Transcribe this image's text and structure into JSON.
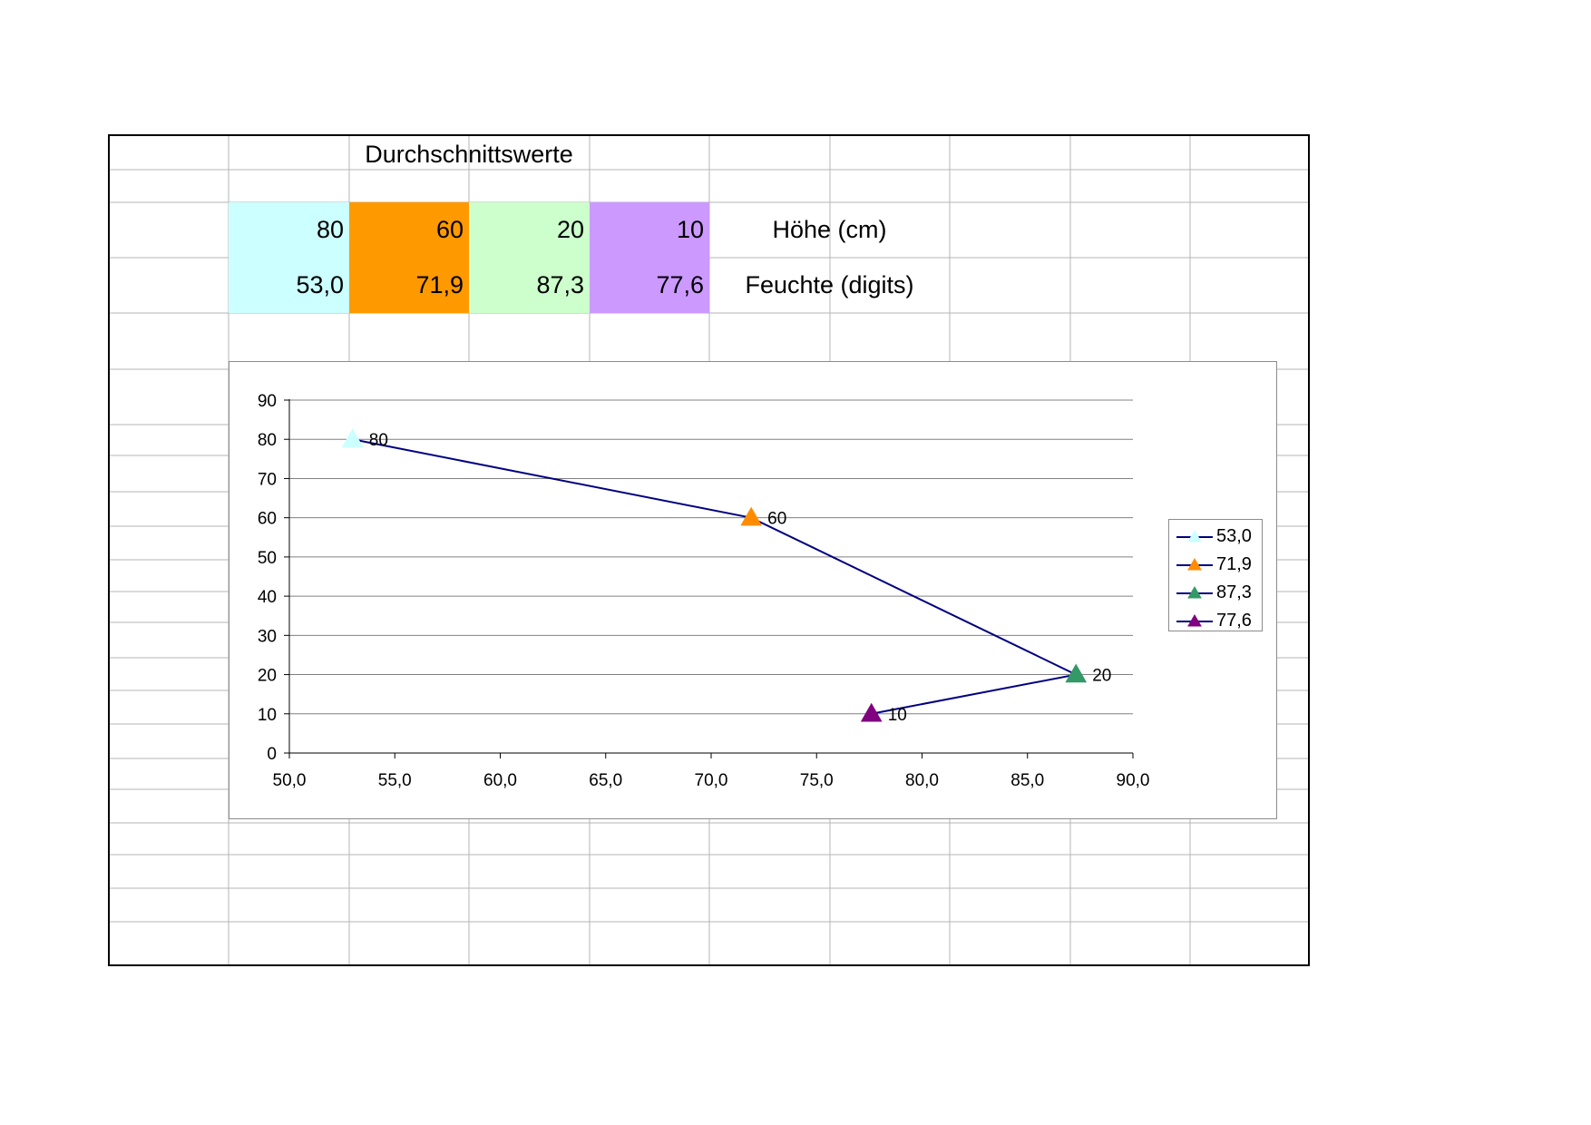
{
  "sheet": {
    "title": "Durchschnittswerte",
    "rows": [
      {
        "label": "Höhe (cm)",
        "values": [
          "80",
          "60",
          "20",
          "10"
        ]
      },
      {
        "label": "Feuchte (digits)",
        "values": [
          "53,0",
          "71,9",
          "87,3",
          "77,6"
        ]
      }
    ],
    "cell_colors": [
      "#ccffff",
      "#ff9900",
      "#ccffcc",
      "#cc99ff"
    ]
  },
  "chart_data": {
    "type": "scatter",
    "title": "",
    "xlabel": "",
    "ylabel": "",
    "xlim": [
      50,
      90
    ],
    "ylim": [
      0,
      90
    ],
    "x_ticks": [
      "50,0",
      "55,0",
      "60,0",
      "65,0",
      "70,0",
      "75,0",
      "80,0",
      "85,0",
      "90,0"
    ],
    "y_ticks": [
      "0",
      "10",
      "20",
      "30",
      "40",
      "50",
      "60",
      "70",
      "80",
      "90"
    ],
    "grid": true,
    "legend_position": "right",
    "line_color": "#000080",
    "marker": "triangle",
    "series": [
      {
        "name": "53,0",
        "x": 53.0,
        "y": 80,
        "label": "80",
        "color": "#ccffff"
      },
      {
        "name": "71,9",
        "x": 71.9,
        "y": 60,
        "label": "60",
        "color": "#ff8c00"
      },
      {
        "name": "87,3",
        "x": 87.3,
        "y": 20,
        "label": "20",
        "color": "#339966"
      },
      {
        "name": "77,6",
        "x": 77.6,
        "y": 10,
        "label": "10",
        "color": "#800080"
      }
    ]
  }
}
